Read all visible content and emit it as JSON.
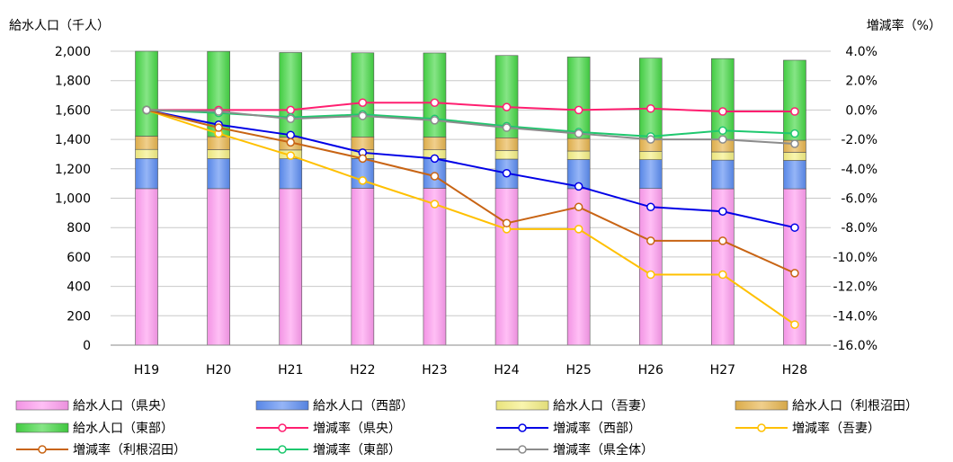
{
  "chart_data": {
    "type": "bar+line",
    "left_axis_label": "給水人口（千人）",
    "right_axis_label": "増減率（%）",
    "categories": [
      "H19",
      "H20",
      "H21",
      "H22",
      "H23",
      "H24",
      "H25",
      "H26",
      "H27",
      "H28"
    ],
    "left_ylim": [
      0,
      2000
    ],
    "left_ticks": [
      "0",
      "200",
      "400",
      "600",
      "800",
      "1,000",
      "1,200",
      "1,400",
      "1,600",
      "1,800",
      "2,000"
    ],
    "right_ylim": [
      -16,
      4
    ],
    "right_ticks": [
      "-16.0%",
      "-14.0%",
      "-12.0%",
      "-10.0%",
      "-8.0%",
      "-6.0%",
      "-4.0%",
      "-2.0%",
      "0.0%",
      "2.0%",
      "4.0%"
    ],
    "grid": true,
    "bar_series": [
      {
        "name": "給水人口（県央）",
        "color": "#ff9cf0",
        "values": [
          1065,
          1065,
          1065,
          1068,
          1068,
          1066,
          1065,
          1066,
          1064,
          1064
        ]
      },
      {
        "name": "給水人口（西部）",
        "color": "#5c8df2",
        "values": [
          205,
          204,
          203,
          202,
          202,
          200,
          198,
          196,
          195,
          193
        ]
      },
      {
        "name": "給水人口（吾妻）",
        "color": "#f5ef82",
        "values": [
          62,
          61,
          60,
          60,
          59,
          59,
          58,
          57,
          56,
          55
        ]
      },
      {
        "name": "給水人口（利根沼田）",
        "color": "#e8b54e",
        "values": [
          90,
          89,
          88,
          87,
          87,
          86,
          85,
          84,
          83,
          82
        ]
      },
      {
        "name": "給水人口（東部）",
        "color": "#45d745",
        "values": [
          578,
          580,
          575,
          572,
          572,
          560,
          555,
          550,
          552,
          545
        ]
      }
    ],
    "line_series": [
      {
        "name": "増減率（県央）",
        "color": "#ff1f70",
        "values": [
          0.0,
          0.0,
          0.0,
          0.5,
          0.5,
          0.2,
          0.0,
          0.1,
          -0.1,
          -0.1
        ]
      },
      {
        "name": "増減率（西部）",
        "color": "#0000e6",
        "values": [
          0.0,
          -1.0,
          -1.7,
          -2.9,
          -3.3,
          -4.3,
          -5.2,
          -6.6,
          -6.9,
          -8.0
        ]
      },
      {
        "name": "増減率（吾妻）",
        "color": "#ffc000",
        "values": [
          0.0,
          -1.6,
          -3.1,
          -4.8,
          -6.4,
          -8.1,
          -8.1,
          -11.2,
          -11.2,
          -14.6
        ]
      },
      {
        "name": "増減率（利根沼田）",
        "color": "#c86414",
        "values": [
          0.0,
          -1.2,
          -2.2,
          -3.3,
          -4.5,
          -7.7,
          -6.6,
          -8.9,
          -8.9,
          -11.1
        ]
      },
      {
        "name": "増減率（東部）",
        "color": "#1ec86e",
        "values": [
          0.0,
          -0.2,
          -0.5,
          -0.3,
          -0.6,
          -1.1,
          -1.5,
          -1.8,
          -1.4,
          -1.6
        ]
      },
      {
        "name": "増減率（県全体）",
        "color": "#8c8c8c",
        "values": [
          0.0,
          -0.1,
          -0.6,
          -0.4,
          -0.7,
          -1.2,
          -1.6,
          -2.0,
          -2.0,
          -2.3
        ]
      }
    ]
  }
}
